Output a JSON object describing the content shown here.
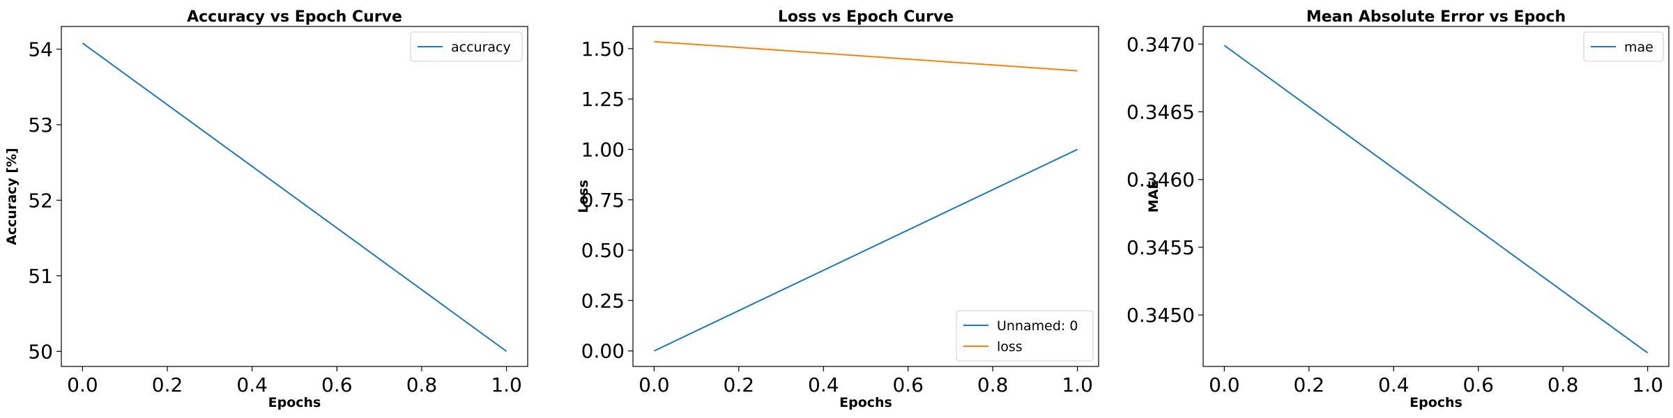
{
  "chart_data": [
    {
      "type": "line",
      "title": "Accuracy vs Epoch Curve",
      "xlabel": "Epochs",
      "ylabel": "Accuracy [%]",
      "xlim": [
        -0.05,
        1.05
      ],
      "ylim": [
        49.8,
        54.3
      ],
      "xticks": [
        0.0,
        0.2,
        0.4,
        0.6,
        0.8,
        1.0
      ],
      "xtick_labels": [
        "0.0",
        "0.2",
        "0.4",
        "0.6",
        "0.8",
        "1.0"
      ],
      "yticks": [
        50,
        51,
        52,
        53,
        54
      ],
      "ytick_labels": [
        "50",
        "51",
        "52",
        "53",
        "54"
      ],
      "legend_position": "top-right",
      "series": [
        {
          "name": "accuracy",
          "color": "#1f77b4",
          "x": [
            0,
            1
          ],
          "y": [
            54.08,
            50.0
          ]
        }
      ]
    },
    {
      "type": "line",
      "title": "Loss vs Epoch Curve",
      "xlabel": "Epochs",
      "ylabel": "Loss",
      "xlim": [
        -0.05,
        1.05
      ],
      "ylim": [
        -0.077,
        1.61
      ],
      "xticks": [
        0.0,
        0.2,
        0.4,
        0.6,
        0.8,
        1.0
      ],
      "xtick_labels": [
        "0.0",
        "0.2",
        "0.4",
        "0.6",
        "0.8",
        "1.0"
      ],
      "yticks": [
        0.0,
        0.25,
        0.5,
        0.75,
        1.0,
        1.25,
        1.5
      ],
      "ytick_labels": [
        "0.00",
        "0.25",
        "0.50",
        "0.75",
        "1.00",
        "1.25",
        "1.50"
      ],
      "legend_position": "bottom-right",
      "series": [
        {
          "name": "Unnamed: 0",
          "color": "#1f77b4",
          "x": [
            0,
            1
          ],
          "y": [
            0.0,
            1.0
          ]
        },
        {
          "name": "loss",
          "color": "#ff7f0e",
          "x": [
            0,
            1
          ],
          "y": [
            1.535,
            1.39
          ]
        }
      ]
    },
    {
      "type": "line",
      "title": "Mean Absolute Error vs Epoch",
      "xlabel": "Epochs",
      "ylabel": "MAE",
      "xlim": [
        -0.05,
        1.05
      ],
      "ylim": [
        0.34462,
        0.34713
      ],
      "xticks": [
        0.0,
        0.2,
        0.4,
        0.6,
        0.8,
        1.0
      ],
      "xtick_labels": [
        "0.0",
        "0.2",
        "0.4",
        "0.6",
        "0.8",
        "1.0"
      ],
      "yticks": [
        0.345,
        0.3455,
        0.346,
        0.3465,
        0.347
      ],
      "ytick_labels": [
        "0.3450",
        "0.3455",
        "0.3460",
        "0.3465",
        "0.3470"
      ],
      "legend_position": "top-right",
      "series": [
        {
          "name": "mae",
          "color": "#1f77b4",
          "x": [
            0,
            1
          ],
          "y": [
            0.34699,
            0.34472
          ]
        }
      ]
    }
  ]
}
